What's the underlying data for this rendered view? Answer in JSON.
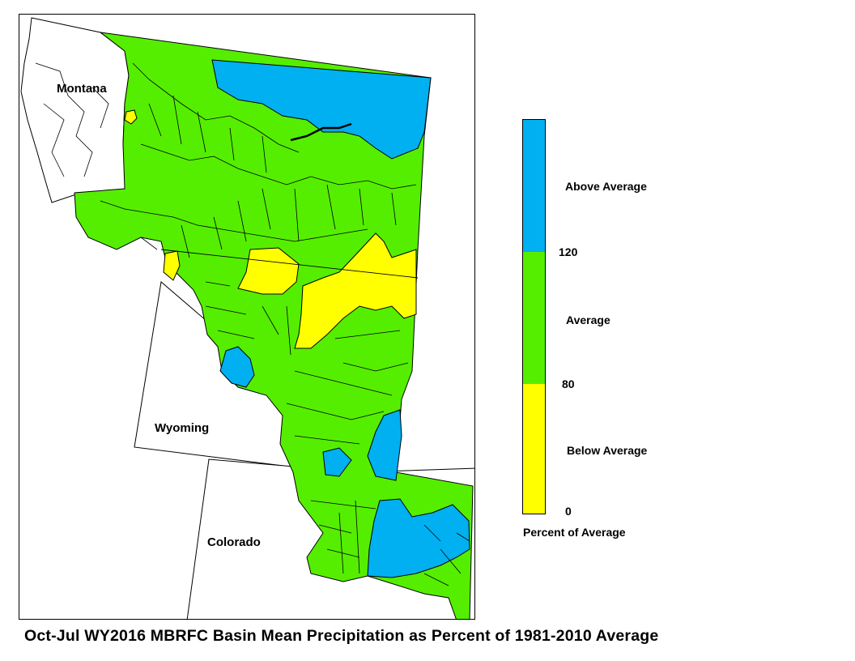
{
  "map": {
    "states": [
      "Montana",
      "Wyoming",
      "Colorado"
    ],
    "categories": [
      {
        "key": "above",
        "label": "Above Average",
        "color": "#00b0f0",
        "range": [
          120,
          null
        ]
      },
      {
        "key": "average",
        "label": "Average",
        "color": "#55ee00",
        "range": [
          80,
          120
        ]
      },
      {
        "key": "below",
        "label": "Below Average",
        "color": "#ffff00",
        "range": [
          0,
          80
        ]
      }
    ],
    "boundary_color": "#000000"
  },
  "legend": {
    "above_label": "Above Average",
    "average_label": "Average",
    "below_label": "Below Average",
    "tick_120": "120",
    "tick_80": "80",
    "tick_0": "0",
    "units_label": "Percent of Average",
    "colors": {
      "above": "#00b0f0",
      "average": "#55ee00",
      "below": "#ffff00"
    }
  },
  "caption": "Oct-Jul WY2016 MBRFC Basin Mean Precipitation as Percent of 1981-2010 Average"
}
